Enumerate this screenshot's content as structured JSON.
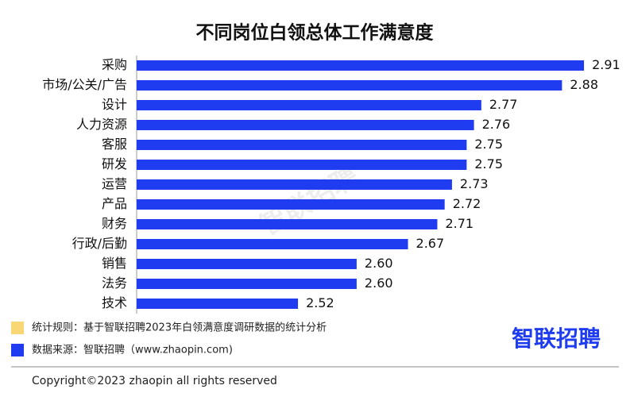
{
  "chart_data": {
    "type": "bar",
    "orientation": "horizontal",
    "title": "不同岗位白领总体工作满意度",
    "categories": [
      "采购",
      "市场/公关/广告",
      "设计",
      "人力资源",
      "客服",
      "研发",
      "运营",
      "产品",
      "财务",
      "行政/后勤",
      "销售",
      "法务",
      "技术"
    ],
    "values": [
      2.91,
      2.88,
      2.77,
      2.76,
      2.75,
      2.75,
      2.73,
      2.72,
      2.71,
      2.67,
      2.6,
      2.6,
      2.52
    ],
    "value_labels": [
      "2.91",
      "2.88",
      "2.77",
      "2.76",
      "2.75",
      "2.75",
      "2.73",
      "2.72",
      "2.71",
      "2.67",
      "2.60",
      "2.60",
      "2.52"
    ],
    "color": "#1f3cf0",
    "xlim": [
      2.3,
      2.95
    ]
  },
  "notes": [
    {
      "text": "统计规则：基于智联招聘2023年白领满意度调研数据的统计分析",
      "color": "#f9d774"
    },
    {
      "text": "数据来源：智联招聘（www.zhaopin.com)",
      "color": "#1f3cf0"
    }
  ],
  "logo": "智联招聘",
  "watermark": "智联招聘",
  "footer": "Copyright©2023 zhaopin all rights reserved"
}
